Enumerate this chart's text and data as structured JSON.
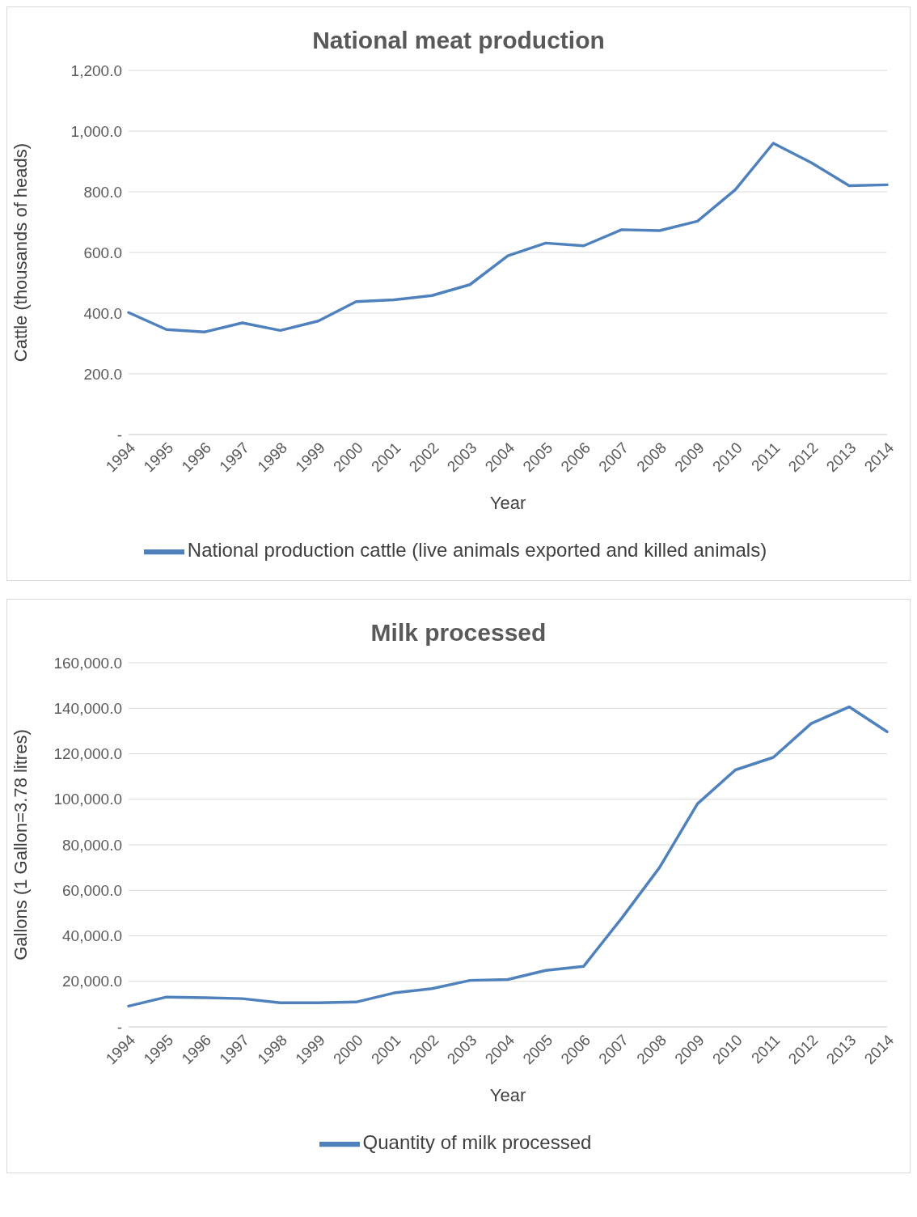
{
  "chart_data": [
    {
      "type": "line",
      "title": "National meat production",
      "xlabel": "Year",
      "ylabel": "Cattle (thousands of heads)",
      "categories": [
        "1994",
        "1995",
        "1996",
        "1997",
        "1998",
        "1999",
        "2000",
        "2001",
        "2002",
        "2003",
        "2004",
        "2005",
        "2006",
        "2007",
        "2008",
        "2009",
        "2010",
        "2011",
        "2012",
        "2013",
        "2014"
      ],
      "series": [
        {
          "name": "National production cattle (live animals exported and killed animals)",
          "color": "#4f81bd",
          "values": [
            402,
            346,
            338,
            368,
            343,
            374,
            438,
            444,
            458,
            494,
            589,
            631,
            622,
            675,
            672,
            703,
            807,
            960,
            896,
            820,
            823
          ]
        }
      ],
      "ylim": [
        0,
        1200
      ],
      "yticks": [
        {
          "value": 0,
          "label": "-"
        },
        {
          "value": 200,
          "label": "200.0"
        },
        {
          "value": 400,
          "label": "400.0"
        },
        {
          "value": 600,
          "label": "600.0"
        },
        {
          "value": 800,
          "label": "800.0"
        },
        {
          "value": 1000,
          "label": "1,000.0"
        },
        {
          "value": 1200,
          "label": "1,200.0"
        }
      ],
      "grid": "y",
      "legend": "bottom",
      "marker": "none",
      "line_style": "solid"
    },
    {
      "type": "line",
      "title": "Milk processed",
      "xlabel": "Year",
      "ylabel": "Gallons (1 Gallon=3.78 litres)",
      "categories": [
        "1994",
        "1995",
        "1996",
        "1997",
        "1998",
        "1999",
        "2000",
        "2001",
        "2002",
        "2003",
        "2004",
        "2005",
        "2006",
        "2007",
        "2008",
        "2009",
        "2010",
        "2011",
        "2012",
        "2013",
        "2014"
      ],
      "series": [
        {
          "name": "Quantity of milk processed",
          "color": "#4f81bd",
          "values": [
            9100,
            13100,
            12800,
            12400,
            10600,
            10600,
            10900,
            14900,
            16800,
            20400,
            20800,
            24800,
            26600,
            47700,
            70000,
            98000,
            112900,
            118400,
            133300,
            140600,
            129700
          ]
        }
      ],
      "ylim": [
        0,
        160000
      ],
      "yticks": [
        {
          "value": 0,
          "label": "-"
        },
        {
          "value": 20000,
          "label": "20,000.0"
        },
        {
          "value": 40000,
          "label": "40,000.0"
        },
        {
          "value": 60000,
          "label": "60,000.0"
        },
        {
          "value": 80000,
          "label": "80,000.0"
        },
        {
          "value": 100000,
          "label": "100,000.0"
        },
        {
          "value": 120000,
          "label": "120,000.0"
        },
        {
          "value": 140000,
          "label": "140,000.0"
        },
        {
          "value": 160000,
          "label": "160,000.0"
        }
      ],
      "grid": "y",
      "legend": "bottom",
      "marker": "none",
      "line_style": "solid"
    }
  ]
}
